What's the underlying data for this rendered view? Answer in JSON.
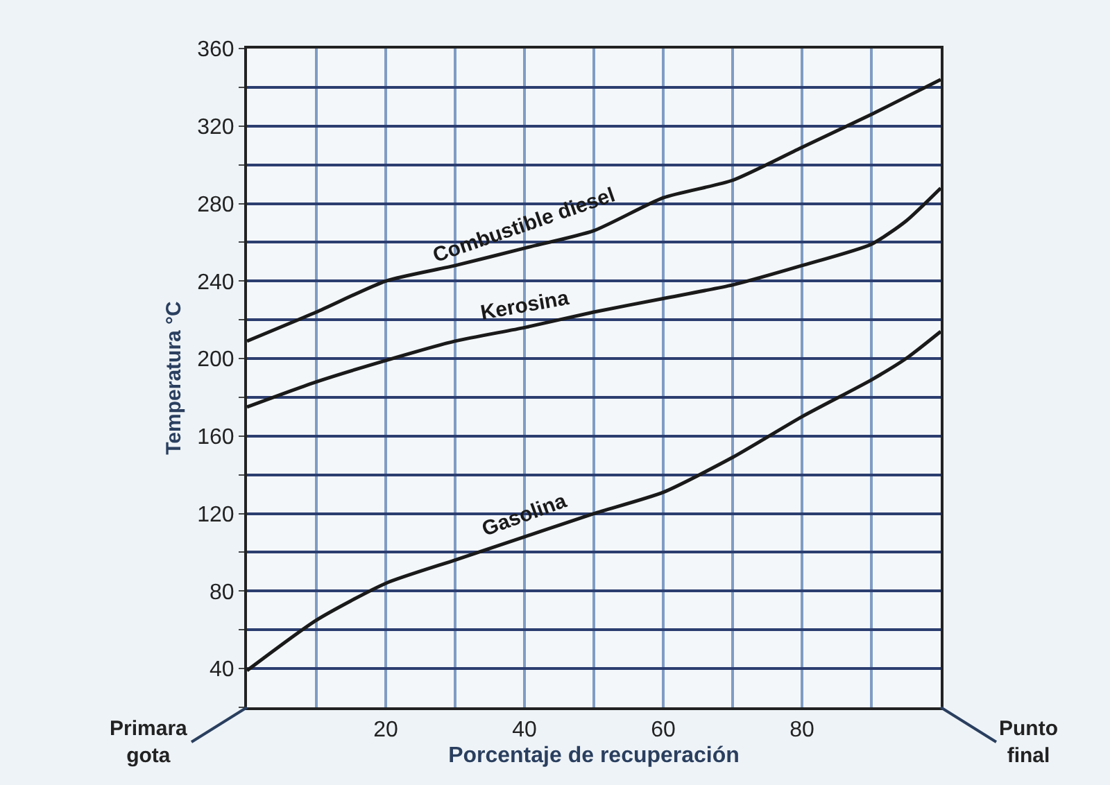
{
  "chart_data": {
    "type": "line",
    "xlabel": "Porcentaje de recuperación",
    "ylabel": "Temperatura °C",
    "x": [
      0,
      10,
      20,
      30,
      40,
      50,
      60,
      70,
      80,
      90,
      95,
      100
    ],
    "series": [
      {
        "name": "Combustible diesel",
        "color": "#1a1a1a",
        "values": [
          209,
          224,
          240,
          248,
          257,
          266,
          283,
          292,
          309,
          326,
          335,
          344
        ]
      },
      {
        "name": "Kerosina",
        "color": "#1a1a1a",
        "values": [
          175,
          188,
          199,
          209,
          216,
          224,
          231,
          238,
          248,
          259,
          271,
          288
        ]
      },
      {
        "name": "Gasolina",
        "color": "#1a1a1a",
        "values": [
          39,
          65,
          84,
          96,
          108,
          120,
          131,
          149,
          170,
          189,
          200,
          214
        ]
      }
    ],
    "xlim": [
      0,
      100
    ],
    "xticks": [
      {
        "value": 0,
        "label": null
      },
      {
        "value": 10,
        "label": null
      },
      20,
      {
        "value": 30,
        "label": null
      },
      40,
      {
        "value": 50,
        "label": null
      },
      60,
      {
        "value": 70,
        "label": null
      },
      80,
      {
        "value": 90,
        "label": null
      },
      {
        "value": 100,
        "label": null
      }
    ],
    "ylim": [
      20,
      360
    ],
    "yticks": [
      {
        "value": 20,
        "label": null
      },
      40,
      {
        "value": 60,
        "label": null
      },
      80,
      {
        "value": 100,
        "label": null
      },
      120,
      {
        "value": 140,
        "label": null
      },
      160,
      {
        "value": 180,
        "label": null
      },
      200,
      {
        "value": 220,
        "label": null
      },
      240,
      {
        "value": 260,
        "label": null
      },
      280,
      {
        "value": 300,
        "label": null
      },
      320,
      {
        "value": 340,
        "label": null
      },
      360
    ],
    "grid": true,
    "legend": false,
    "marker": "none",
    "line_style": "solid",
    "annotations": [
      "Primara gota",
      "Punto final"
    ]
  }
}
